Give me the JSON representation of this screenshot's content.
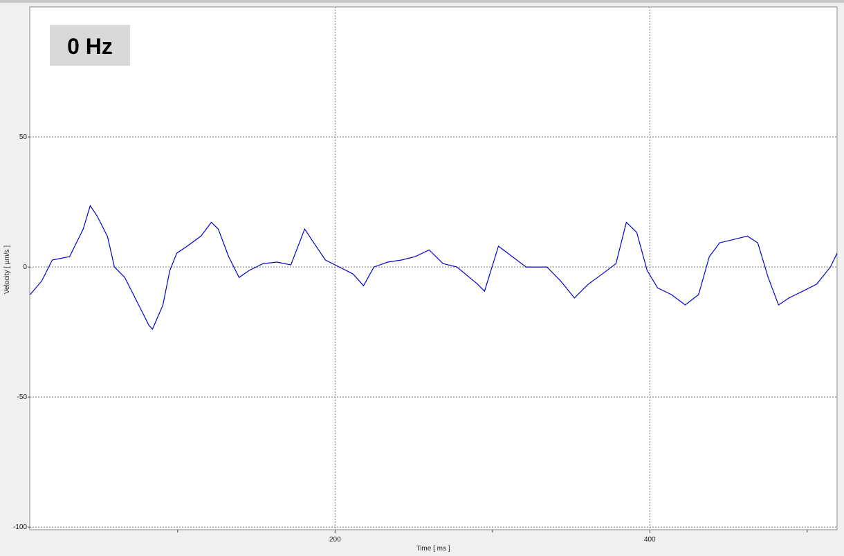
{
  "chart_data": {
    "type": "line",
    "annotation": "0 Hz",
    "xlabel": "Time [ ms ]",
    "ylabel": "Velocity [ µm/s ]",
    "xlim": [
      6,
      519
    ],
    "ylim": [
      -101,
      100
    ],
    "xticks": [
      200,
      400
    ],
    "xminorticks": [
      100,
      300,
      500
    ],
    "yticks": [
      -100,
      -50,
      0,
      50
    ],
    "grid": true,
    "x": [
      6.2,
      13.7,
      20.3,
      31.3,
      40.0,
      44.4,
      48.8,
      55.4,
      59.8,
      66.4,
      75.2,
      81.8,
      84.0,
      90.6,
      95.0,
      99.4,
      106.0,
      114.8,
      121.4,
      125.8,
      132.4,
      139.0,
      145.5,
      154.3,
      163.1,
      171.9,
      180.7,
      185.1,
      193.9,
      202.7,
      211.5,
      218.1,
      224.7,
      233.5,
      242.2,
      251.0,
      259.8,
      268.6,
      277.4,
      290.6,
      295.0,
      303.8,
      312.6,
      321.4,
      334.6,
      343.3,
      352.1,
      360.9,
      369.7,
      378.5,
      385.1,
      391.7,
      398.3,
      404.9,
      413.7,
      422.5,
      431.0,
      437.8,
      444.4,
      453.2,
      462.0,
      468.6,
      475.2,
      481.8,
      488.4,
      497.2,
      506.0,
      514.8,
      519.0
    ],
    "series": [
      {
        "name": "Velocity",
        "color": "#0000cc",
        "values": [
          -10.6,
          -5.3,
          2.7,
          4.0,
          14.6,
          23.6,
          19.6,
          11.7,
          0,
          -4.0,
          -14.6,
          -22.5,
          -23.9,
          -14.6,
          -1.3,
          5.3,
          8.0,
          11.9,
          17.2,
          14.6,
          4.0,
          -4.0,
          -1.3,
          1.3,
          1.9,
          0.8,
          14.6,
          10.6,
          2.7,
          0,
          -2.7,
          -7.2,
          0,
          1.9,
          2.7,
          4.0,
          6.6,
          1.3,
          0,
          -6.6,
          -9.3,
          8.0,
          4.0,
          0,
          0,
          -5.3,
          -11.9,
          -6.6,
          -2.7,
          1.3,
          17.2,
          13.3,
          -1.3,
          -8.0,
          -10.6,
          -14.6,
          -10.6,
          4.0,
          9.3,
          10.6,
          11.9,
          9.3,
          -4.0,
          -14.6,
          -11.9,
          -9.3,
          -6.6,
          0,
          5.3
        ]
      }
    ]
  }
}
